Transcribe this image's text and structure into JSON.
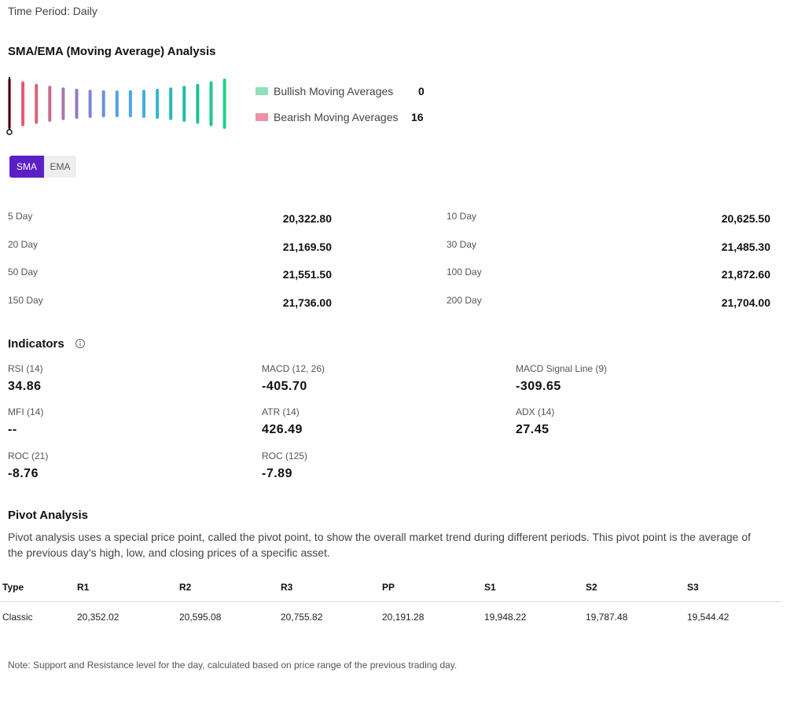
{
  "time_period": "Time Period: Daily",
  "moving_average": {
    "title": "SMA/EMA (Moving Average) Analysis",
    "legend": [
      {
        "label": "Bullish Moving Averages",
        "count": "0"
      },
      {
        "label": "Bearish Moving Averages",
        "count": "16"
      }
    ],
    "tabs": [
      "SMA",
      "EMA"
    ],
    "rows": [
      {
        "label": "5 Day",
        "value": "20,322.80"
      },
      {
        "label": "10 Day",
        "value": "20,625.50"
      },
      {
        "label": "20 Day",
        "value": "21,169.50"
      },
      {
        "label": "30 Day",
        "value": "21,485.30"
      },
      {
        "label": "50 Day",
        "value": "21,551.50"
      },
      {
        "label": "100 Day",
        "value": "21,872.60"
      },
      {
        "label": "150 Day",
        "value": "21,736.00"
      },
      {
        "label": "200 Day",
        "value": "21,704.00"
      }
    ]
  },
  "indicators": {
    "title": "Indicators",
    "items": [
      {
        "label": "RSI (14)",
        "value": "34.86"
      },
      {
        "label": "MACD (12, 26)",
        "value": "-405.70"
      },
      {
        "label": "MACD Signal Line (9)",
        "value": "-309.65"
      },
      {
        "label": "MFI (14)",
        "value": "--"
      },
      {
        "label": "ATR (14)",
        "value": "426.49"
      },
      {
        "label": "ADX (14)",
        "value": "27.45"
      },
      {
        "label": "ROC (21)",
        "value": "-8.76"
      },
      {
        "label": "ROC (125)",
        "value": "-7.89"
      }
    ]
  },
  "pivot": {
    "title": "Pivot Analysis",
    "description": "Pivot analysis uses a special price point, called the pivot point, to show the overall market trend during different periods. This pivot point is the average of the previous day’s high, low, and closing prices of a specific asset.",
    "table": {
      "header": [
        "Type",
        "R1",
        "R2",
        "R3",
        "PP",
        "S1",
        "S2",
        "S3"
      ],
      "rows": [
        [
          "Classic",
          "20,352.02",
          "20,595.08",
          "20,755.82",
          "20,191.28",
          "19,948.22",
          "19,787.48",
          "19,544.42"
        ]
      ]
    },
    "note": "Note: Support and Resistance level for the day, calculated based on price range of the previous trading day."
  }
}
